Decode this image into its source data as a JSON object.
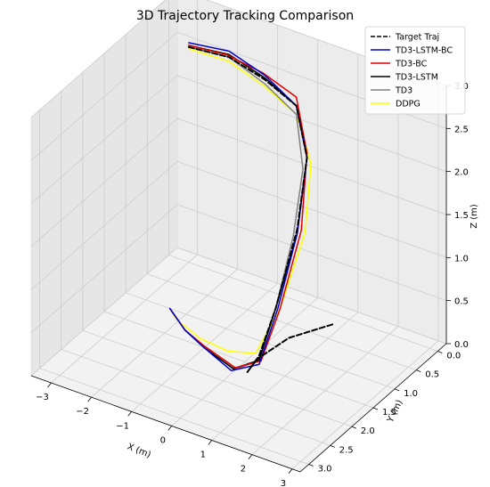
{
  "chart_data": {
    "type": "line",
    "projection": "3d",
    "title": "3D Trajectory Tracking Comparison",
    "xlabel": "X (m)",
    "ylabel": "Y (m)",
    "zlabel": "Z (m)",
    "xlim": [
      -3.5,
      3.2
    ],
    "ylim": [
      -0.2,
      3.2
    ],
    "zlim": [
      0,
      3
    ],
    "x_ticks": [
      "−3",
      "−2",
      "−1",
      "0",
      "1",
      "2",
      "3"
    ],
    "y_ticks": [
      "0.0",
      "0.5",
      "1.0",
      "1.5",
      "2.0",
      "2.5",
      "3.0"
    ],
    "z_ticks": [
      "0.0",
      "0.5",
      "1.0",
      "1.5",
      "2.0",
      "2.5",
      "3.0"
    ],
    "grid": true,
    "legend_position": "top-right",
    "series": [
      {
        "name": "Target Traj",
        "color": "#000000",
        "style": "dashed",
        "points": [
          [
            -3.0,
            0.0,
            2.5
          ],
          [
            -2.0,
            0.0,
            2.55
          ],
          [
            -1.0,
            0.1,
            2.5
          ],
          [
            0.0,
            0.3,
            2.45
          ],
          [
            0.8,
            0.8,
            2.2
          ],
          [
            1.2,
            1.4,
            1.7
          ],
          [
            1.2,
            1.9,
            1.0
          ],
          [
            1.0,
            2.1,
            0.5
          ],
          [
            0.6,
            2.0,
            0.2
          ],
          [
            0.3,
            1.5,
            0.08
          ],
          [
            0.35,
            0.8,
            0.03
          ],
          [
            0.8,
            0.2,
            0.0
          ]
        ]
      },
      {
        "name": "TD3-LSTM-BC",
        "color": "#0000cc",
        "style": "solid",
        "points": [
          [
            -3.0,
            0.0,
            2.55
          ],
          [
            -2.0,
            0.0,
            2.62
          ],
          [
            -1.0,
            0.1,
            2.55
          ],
          [
            0.0,
            0.3,
            2.45
          ],
          [
            0.8,
            0.8,
            2.2
          ],
          [
            1.2,
            1.4,
            1.65
          ],
          [
            1.25,
            1.9,
            1.0
          ],
          [
            1.0,
            2.1,
            0.4
          ],
          [
            0.2,
            2.0,
            0.15
          ],
          [
            -0.8,
            1.7,
            0.12
          ],
          [
            -1.6,
            1.4,
            0.06
          ],
          [
            -2.4,
            1.0,
            0.0
          ]
        ]
      },
      {
        "name": "TD3-BC",
        "color": "#e00000",
        "style": "solid",
        "points": [
          [
            -3.0,
            0.0,
            2.52
          ],
          [
            -2.0,
            0.05,
            2.6
          ],
          [
            -1.0,
            0.15,
            2.6
          ],
          [
            0.0,
            0.3,
            2.55
          ],
          [
            0.8,
            0.8,
            2.25
          ],
          [
            1.3,
            1.4,
            1.7
          ],
          [
            1.3,
            1.9,
            1.0
          ],
          [
            1.05,
            2.1,
            0.45
          ],
          [
            0.3,
            2.0,
            0.2
          ],
          [
            -0.8,
            1.7,
            0.14
          ],
          [
            -1.6,
            1.4,
            0.06
          ],
          [
            -2.4,
            1.0,
            0.0
          ]
        ]
      },
      {
        "name": "TD3-LSTM",
        "color": "#000000",
        "style": "solid",
        "points": [
          [
            -3.0,
            0.0,
            2.52
          ],
          [
            -2.0,
            0.0,
            2.58
          ],
          [
            -1.0,
            0.1,
            2.52
          ],
          [
            0.0,
            0.3,
            2.45
          ],
          [
            0.8,
            0.8,
            2.2
          ],
          [
            1.2,
            1.4,
            1.65
          ],
          [
            1.2,
            1.9,
            1.0
          ],
          [
            1.0,
            2.1,
            0.45
          ],
          [
            0.25,
            2.0,
            0.18
          ],
          [
            -0.8,
            1.7,
            0.12
          ],
          [
            -1.6,
            1.4,
            0.06
          ],
          [
            -2.4,
            1.0,
            0.0
          ]
        ]
      },
      {
        "name": "TD3",
        "color": "#808080",
        "style": "solid",
        "points": [
          [
            -3.0,
            0.0,
            2.5
          ],
          [
            -2.0,
            0.0,
            2.55
          ],
          [
            -1.0,
            0.1,
            2.45
          ],
          [
            0.0,
            0.3,
            2.35
          ],
          [
            0.7,
            0.8,
            2.05
          ],
          [
            1.1,
            1.4,
            1.6
          ],
          [
            1.2,
            1.9,
            1.0
          ],
          [
            1.0,
            2.1,
            0.45
          ],
          [
            0.3,
            2.0,
            0.18
          ],
          [
            -0.8,
            1.7,
            0.12
          ],
          [
            -1.6,
            1.4,
            0.06
          ],
          [
            -2.4,
            1.0,
            0.0
          ]
        ]
      },
      {
        "name": "DDPG",
        "color": "#ffff00",
        "style": "solid",
        "points": [
          [
            -3.0,
            0.0,
            2.48
          ],
          [
            -2.0,
            0.0,
            2.5
          ],
          [
            -1.0,
            0.1,
            2.42
          ],
          [
            0.0,
            0.3,
            2.35
          ],
          [
            0.9,
            0.8,
            2.15
          ],
          [
            1.4,
            1.4,
            1.7
          ],
          [
            1.3,
            1.9,
            1.0
          ],
          [
            0.8,
            2.0,
            0.45
          ],
          [
            0.0,
            1.9,
            0.3
          ],
          [
            -1.0,
            1.6,
            0.15
          ],
          [
            -1.9,
            1.3,
            0.08
          ],
          [
            -2.4,
            1.0,
            0.0
          ]
        ]
      }
    ]
  }
}
